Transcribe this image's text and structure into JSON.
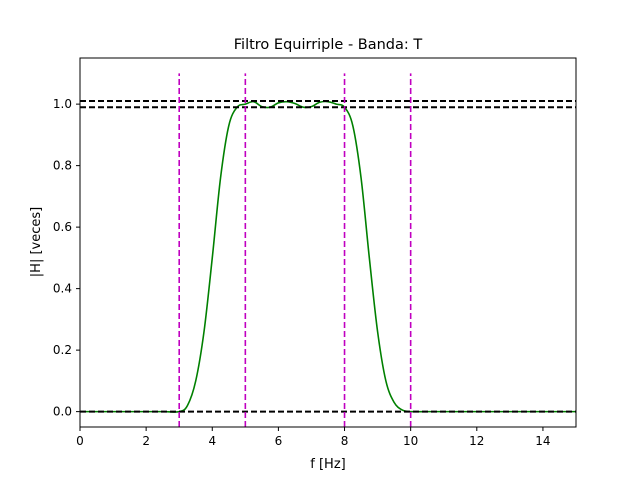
{
  "chart_data": {
    "type": "line",
    "title": "Filtro Equirriple - Banda: T",
    "xlabel": "f [Hz]",
    "ylabel": "|H| [veces]",
    "xlim": [
      0,
      15
    ],
    "ylim": [
      -0.05,
      1.15
    ],
    "xticks": [
      0,
      2,
      4,
      6,
      8,
      10,
      12,
      14
    ],
    "xtick_labels": [
      "0",
      "2",
      "4",
      "6",
      "8",
      "10",
      "12",
      "14"
    ],
    "yticks": [
      0.0,
      0.2,
      0.4,
      0.6,
      0.8,
      1.0
    ],
    "ytick_labels": [
      "0.0",
      "0.2",
      "0.4",
      "0.6",
      "0.8",
      "1.0"
    ],
    "grid": false,
    "series": [
      {
        "color": "#008000",
        "style": "solid",
        "x": [
          0,
          1,
          2,
          2.5,
          3,
          3.25,
          3.5,
          3.75,
          4,
          4.25,
          4.5,
          4.75,
          5,
          5.25,
          5.5,
          5.75,
          6,
          6.25,
          6.5,
          6.75,
          7,
          7.25,
          7.5,
          7.75,
          8,
          8.25,
          8.5,
          8.75,
          9,
          9.25,
          9.5,
          9.75,
          10,
          10.5,
          11,
          12,
          13,
          14,
          15
        ],
        "y": [
          0.0,
          0.0,
          0.0,
          0.0,
          0.0,
          0.02,
          0.1,
          0.26,
          0.5,
          0.76,
          0.93,
          0.99,
          1.0,
          1.008,
          0.992,
          0.99,
          1.004,
          1.008,
          1.002,
          0.99,
          0.992,
          1.006,
          1.008,
          1.0,
          0.99,
          0.93,
          0.76,
          0.5,
          0.26,
          0.1,
          0.03,
          0.005,
          0.0,
          0.0,
          0.0,
          0.0,
          0.0,
          0.0,
          0.0
        ]
      }
    ],
    "hlines": [
      {
        "y": 1.01,
        "color": "#000000",
        "style": "dashed"
      },
      {
        "y": 0.99,
        "color": "#000000",
        "style": "dashed"
      },
      {
        "y": 0.0,
        "color": "#000000",
        "style": "dashed"
      }
    ],
    "vlines": [
      {
        "x": 3,
        "y_top": 1.1,
        "color": "#c000c0",
        "style": "dashed"
      },
      {
        "x": 5,
        "y_top": 1.1,
        "color": "#c000c0",
        "style": "dashed"
      },
      {
        "x": 8,
        "y_top": 1.1,
        "color": "#c000c0",
        "style": "dashed"
      },
      {
        "x": 10,
        "y_top": 1.1,
        "color": "#c000c0",
        "style": "dashed"
      }
    ]
  }
}
